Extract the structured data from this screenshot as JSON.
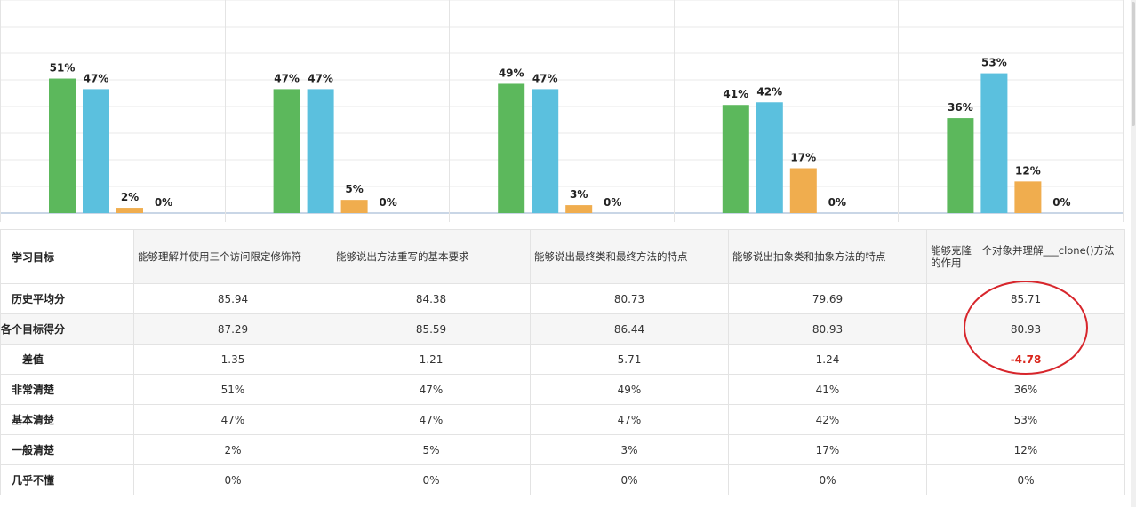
{
  "chart_data": {
    "type": "bar",
    "categories": [
      "能够理解并使用三个访问限定修饰符",
      "能够说出方法重写的基本要求",
      "能够说出最终类和最终方法的特点",
      "能够说出抽象类和抽象方法的特点",
      "能够克隆一个对象并理解___clone()方法的作用"
    ],
    "series": [
      {
        "values": [
          51,
          47,
          49,
          41,
          36
        ],
        "labels": [
          "51%",
          "47%",
          "49%",
          "41%",
          "36%"
        ],
        "color": "#5cb85c"
      },
      {
        "values": [
          47,
          47,
          47,
          42,
          53
        ],
        "labels": [
          "47%",
          "47%",
          "47%",
          "42%",
          "53%"
        ],
        "color": "#5bc0de"
      },
      {
        "values": [
          2,
          5,
          3,
          17,
          12
        ],
        "labels": [
          "2%",
          "5%",
          "3%",
          "17%",
          "12%"
        ],
        "color": "#f0ad4e"
      },
      {
        "values": [
          0,
          0,
          0,
          0,
          0
        ],
        "labels": [
          "0%",
          "0%",
          "0%",
          "0%",
          "0%"
        ],
        "color": "#d9534f"
      }
    ],
    "ylim": [
      0,
      60
    ],
    "grid": true,
    "title": "",
    "xlabel": "",
    "ylabel": ""
  },
  "table": {
    "header_label": "学习目标",
    "columns": [
      "能够理解并使用三个访问限定修饰符",
      "能够说出方法重写的基本要求",
      "能够说出最终类和最终方法的特点",
      "能够说出抽象类和抽象方法的特点",
      "能够克隆一个对象并理解___clone()方法的作用"
    ],
    "rows": [
      {
        "label": "历史平均分",
        "values": [
          "85.94",
          "84.38",
          "80.73",
          "79.69",
          "85.71"
        ]
      },
      {
        "label": "各个目标得分",
        "values": [
          "87.29",
          "85.59",
          "86.44",
          "80.93",
          "80.93"
        ]
      },
      {
        "label": "差值",
        "values": [
          "1.35",
          "1.21",
          "5.71",
          "1.24",
          "-4.78"
        ]
      },
      {
        "label": "非常清楚",
        "values": [
          "51%",
          "47%",
          "49%",
          "41%",
          "36%"
        ]
      },
      {
        "label": "基本清楚",
        "values": [
          "47%",
          "47%",
          "47%",
          "42%",
          "53%"
        ]
      },
      {
        "label": "一般清楚",
        "values": [
          "2%",
          "5%",
          "3%",
          "17%",
          "12%"
        ]
      },
      {
        "label": "几乎不懂",
        "values": [
          "0%",
          "0%",
          "0%",
          "0%",
          "0%"
        ]
      }
    ],
    "highlight_color": "#d7262c"
  }
}
